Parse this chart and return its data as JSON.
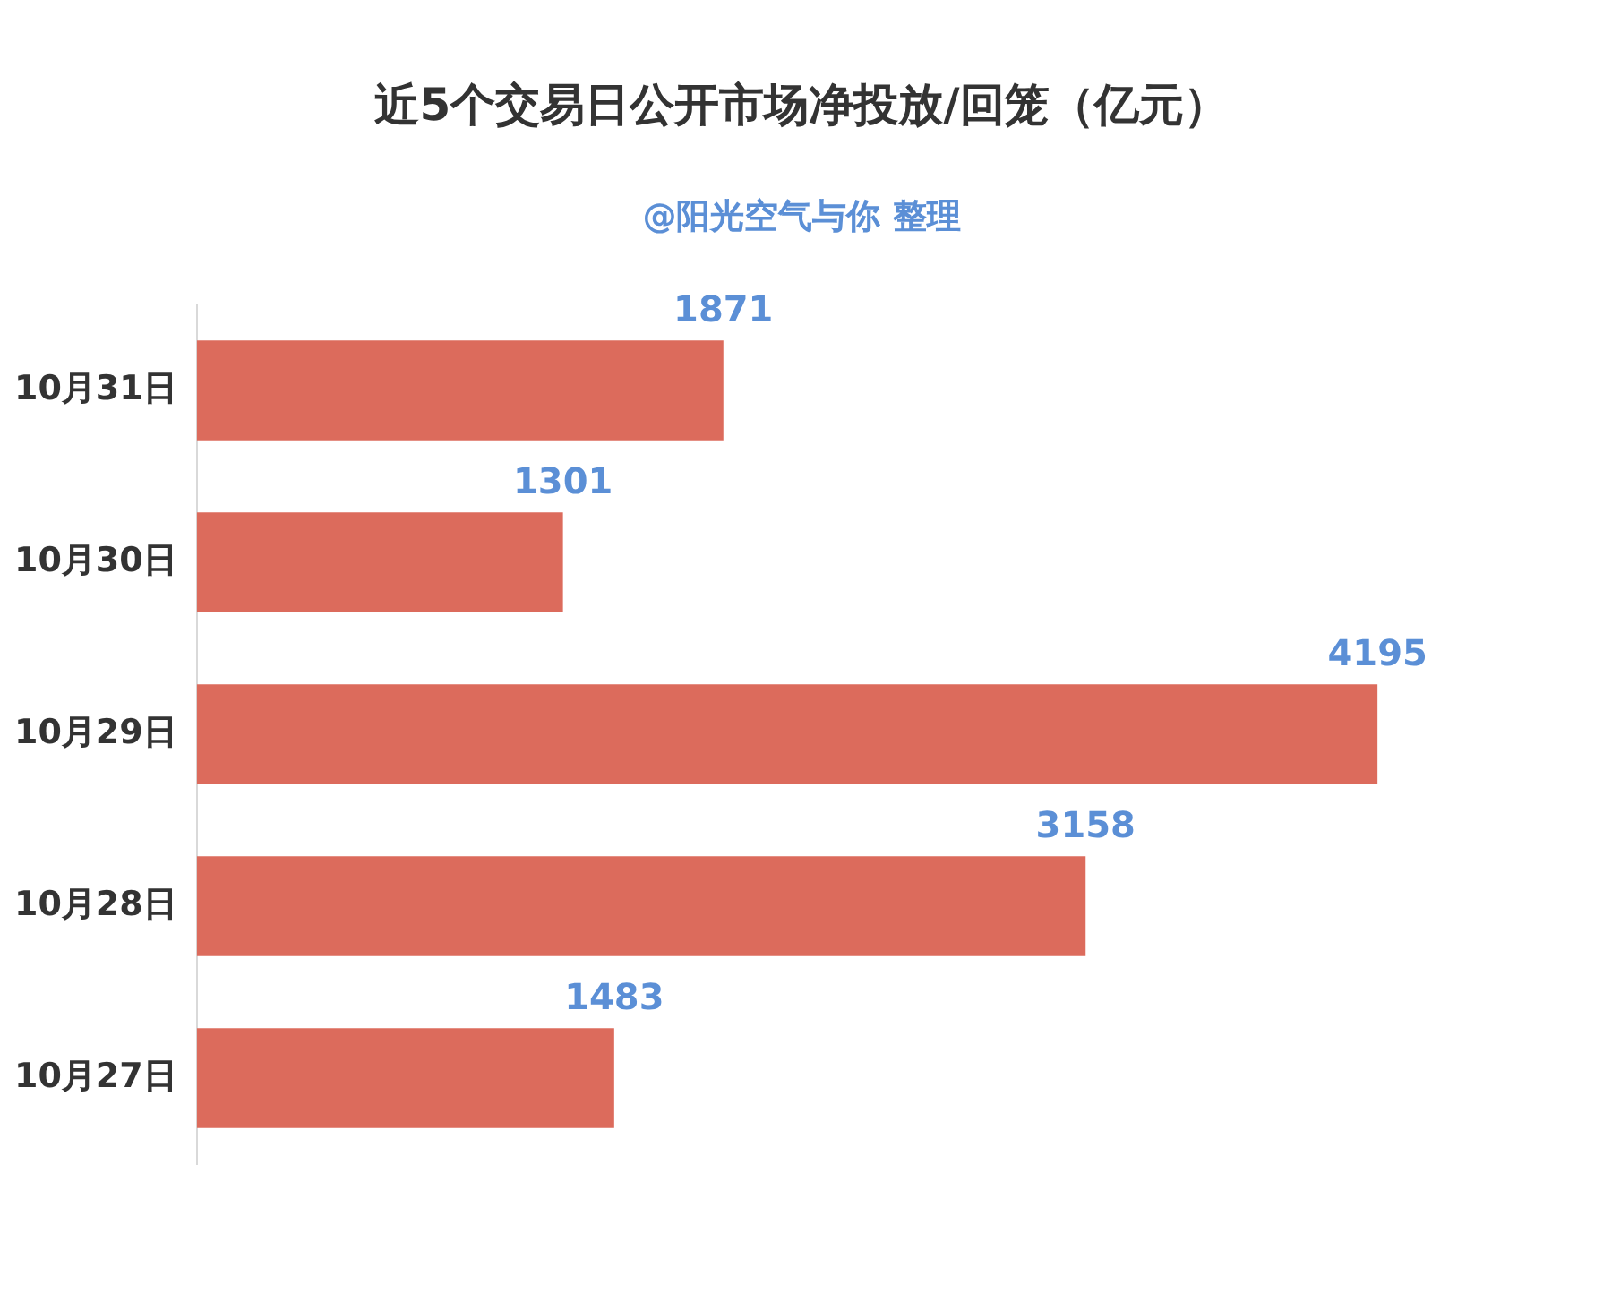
{
  "chart_data": {
    "type": "bar",
    "orientation": "horizontal",
    "title": "近5个交易日公开市场净投放/回笼（亿元）",
    "subtitle": "@阳光空气与你 整理",
    "categories": [
      "10月31日",
      "10月30日",
      "10月29日",
      "10月28日",
      "10月27日"
    ],
    "values": [
      1871,
      1301,
      4195,
      3158,
      1483
    ],
    "color": "#dc6b5c",
    "data_labels": true,
    "grid": false,
    "legend": false,
    "tick_labels": "y"
  }
}
